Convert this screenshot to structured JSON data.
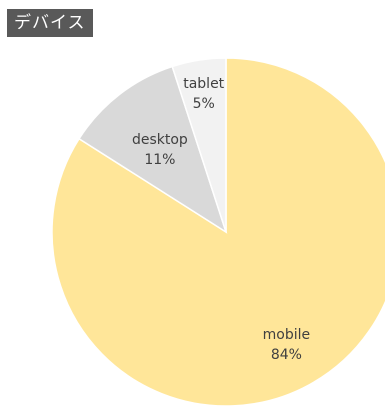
{
  "chart_data": {
    "type": "pie",
    "title": "デバイス",
    "slices": [
      {
        "label": "mobile",
        "value": 84,
        "value_label": "84%",
        "color": "#FFE699"
      },
      {
        "label": "desktop",
        "value": 11,
        "value_label": "11%",
        "color": "#D9D9D9"
      },
      {
        "label": "tablet",
        "value": 5,
        "value_label": "5%",
        "color": "#F2F2F2"
      }
    ],
    "legend": false
  }
}
